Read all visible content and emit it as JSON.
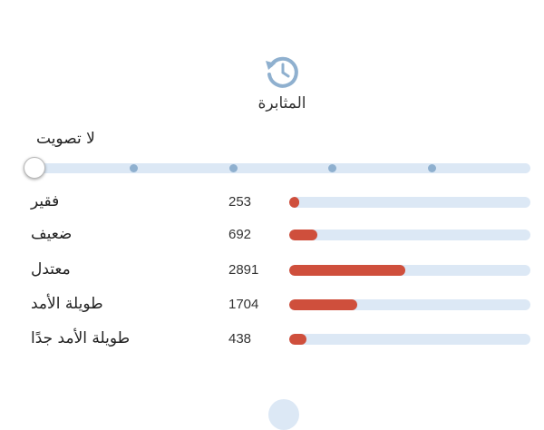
{
  "header": {
    "title": "المثابرة",
    "icon": "history-clock-icon"
  },
  "vote": {
    "label": "لا تصويت",
    "steps": 6,
    "selected_index": 0
  },
  "colors": {
    "accent": "#cf4f3c",
    "track": "#dce8f5",
    "icon": "#8fb0cf"
  },
  "ratings": [
    {
      "label": "فقير",
      "count": "253",
      "value": 253
    },
    {
      "label": "ضعيف",
      "count": "692",
      "value": 692
    },
    {
      "label": "معتدل",
      "count": "2891",
      "value": 2891
    },
    {
      "label": "طويلة الأمد",
      "count": "1704",
      "value": 1704
    },
    {
      "label": "طويلة الأمد جدًا",
      "count": "438",
      "value": 438
    }
  ]
}
